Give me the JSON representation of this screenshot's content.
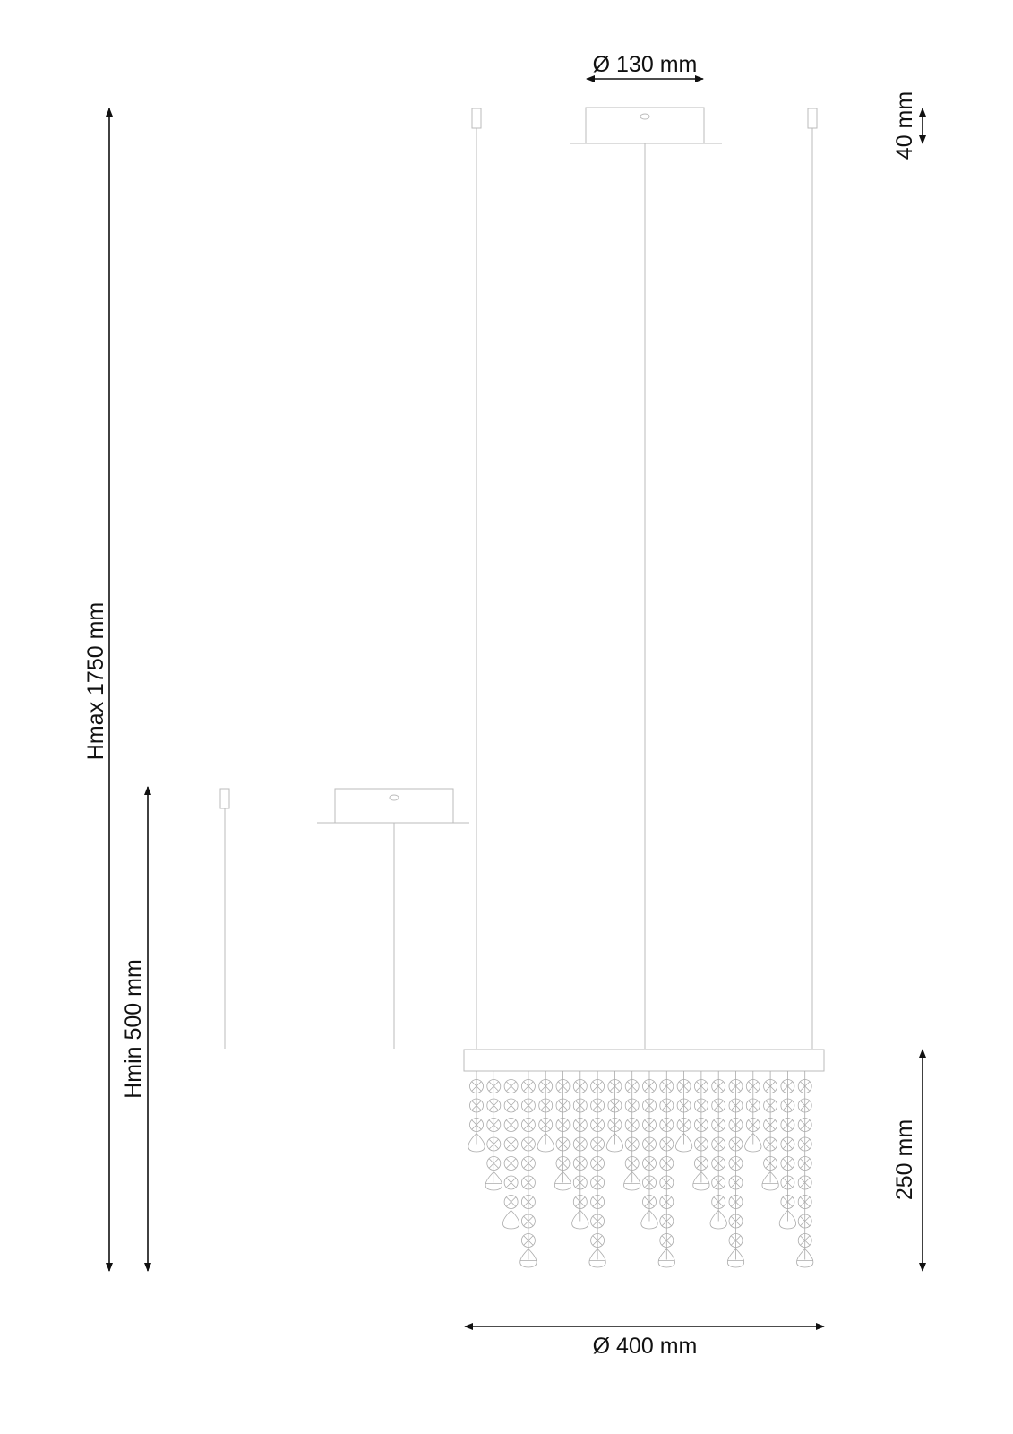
{
  "dimensions": {
    "canopy_diameter": "Ø 130 mm",
    "canopy_height": "40 mm",
    "height_max": "Hmax 1750 mm",
    "height_min": "Hmin 500 mm",
    "crystal_height": "250 mm",
    "fixture_diameter": "Ø 400 mm"
  },
  "colors": {
    "line": "#bbbbbb",
    "dimension": "#111111"
  }
}
